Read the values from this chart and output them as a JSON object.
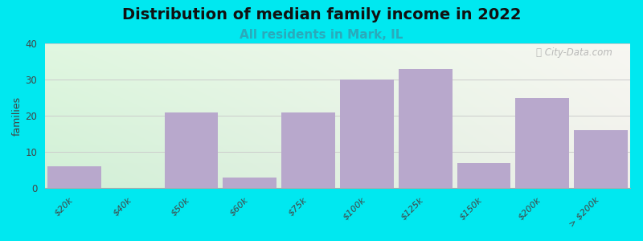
{
  "title": "Distribution of median family income in 2022",
  "subtitle": "All residents in Mark, IL",
  "categories": [
    "$20k",
    "$40k",
    "$50k",
    "$60k",
    "$75k",
    "$100k",
    "$125k",
    "$150k",
    "$200k",
    "> $200k"
  ],
  "values": [
    6,
    0,
    21,
    3,
    21,
    30,
    33,
    7,
    25,
    16
  ],
  "bar_color": "#b8a8cc",
  "ylabel": "families",
  "ylim": [
    0,
    40
  ],
  "yticks": [
    0,
    10,
    20,
    30,
    40
  ],
  "background_color": "#00e8f0",
  "title_fontsize": 14,
  "subtitle_fontsize": 11,
  "subtitle_color": "#2aaabb",
  "watermark": "City-Data.com"
}
